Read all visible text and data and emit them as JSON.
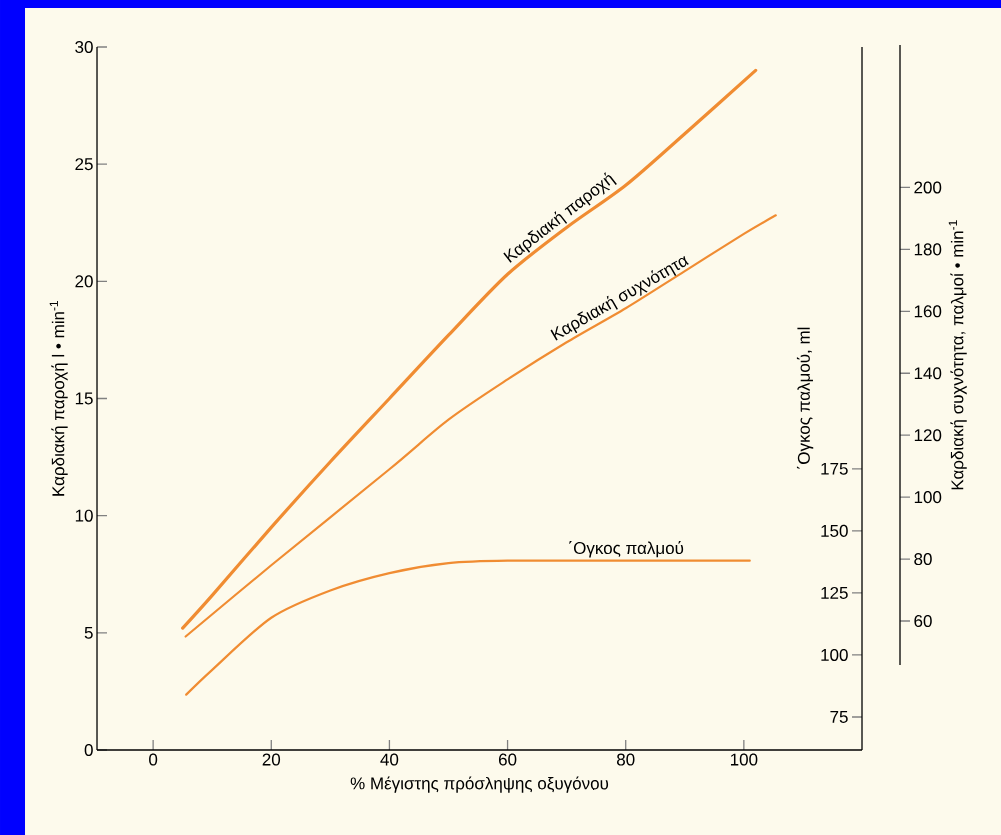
{
  "chart_data": {
    "type": "line",
    "xlabel": "% Μέγιστης πρόσληψης οξυγόνου",
    "ylabel": "Καρδιακή παροχή l • min$^{-1}$",
    "y2label": "΄Ογκος παλμού, ml",
    "y3label": "Καρδιακή συχνότητα, παλμοί • min$^{-1}$",
    "xlim": [
      -9.5,
      120
    ],
    "xticks": [
      0,
      20,
      40,
      60,
      80,
      100
    ],
    "ylim": [
      0,
      30
    ],
    "yticks": [
      0,
      5,
      10,
      15,
      20,
      25,
      30
    ],
    "y2lim": [
      61.7,
      345
    ],
    "y2ticks": [
      75,
      100,
      125,
      150,
      175
    ],
    "y3lim": [
      45.8,
      246
    ],
    "y3ticks": [
      60,
      80,
      100,
      120,
      140,
      160,
      180,
      200
    ],
    "series": [
      {
        "name": "Καρδιακή παροχή",
        "color": "#f08c32",
        "x": [
          5,
          10,
          20,
          30,
          40,
          50,
          60,
          70,
          80,
          90,
          102
        ],
        "values": [
          5.2,
          6.6,
          9.5,
          12.3,
          15.0,
          17.7,
          20.3,
          22.3,
          24.1,
          26.3,
          29.0
        ]
      },
      {
        "name": "Καρδιακή συχνότητα",
        "color": "#f08c32",
        "axis": "y3",
        "x": [
          5.5,
          20,
          40,
          50,
          60,
          70,
          80,
          90,
          100,
          105.4
        ],
        "values": [
          55,
          78,
          109,
          125,
          138,
          150,
          161,
          173,
          185,
          191
        ]
      },
      {
        "name": "΄Ογκος παλμού",
        "color": "#f08c32",
        "axis": "y2",
        "x": [
          5.6,
          10,
          20,
          30,
          40,
          50,
          60,
          80,
          101
        ],
        "values": [
          84,
          94,
          115,
          126,
          133,
          137,
          138,
          138,
          138
        ]
      }
    ]
  }
}
